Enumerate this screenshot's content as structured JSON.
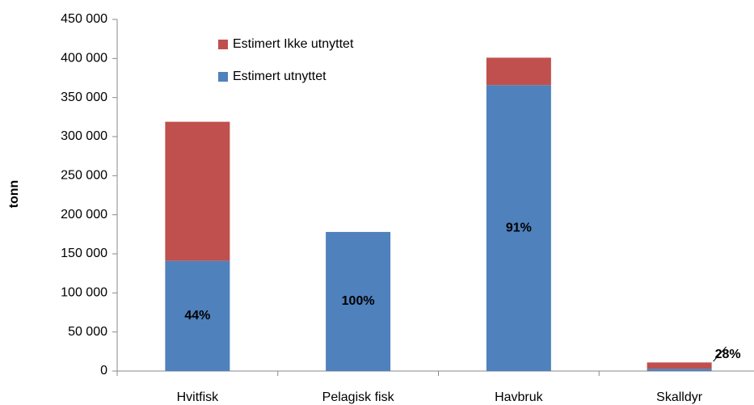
{
  "chart_data": {
    "type": "stacked_bar",
    "y_axis_label": "tonn",
    "categories": [
      "Hvitfisk",
      "Pelagisk fisk",
      "Havbruk",
      "Skalldyr"
    ],
    "series": [
      {
        "name": "Estimert utnyttet",
        "color": "#4f81bd",
        "values": [
          141000,
          178000,
          366000,
          3000
        ]
      },
      {
        "name": "Estimert Ikke utnyttet",
        "color": "#c0504d",
        "values": [
          178000,
          0,
          35000,
          8000
        ]
      }
    ],
    "annotations": [
      "44%",
      "100%",
      "91%",
      "28%"
    ],
    "ylim": [
      0,
      450000
    ],
    "yticks": [
      0,
      {
        "value": 50000,
        "label": "50 000"
      },
      {
        "value": 100000,
        "label": "100 000"
      },
      {
        "value": 150000,
        "label": "150 000"
      },
      {
        "value": 200000,
        "label": "200 000"
      },
      {
        "value": 250000,
        "label": "250 000"
      },
      {
        "value": 300000,
        "label": "300 000"
      },
      {
        "value": 350000,
        "label": "350 000"
      },
      {
        "value": 400000,
        "label": "400 000"
      },
      {
        "value": 450000,
        "label": "450 000"
      }
    ],
    "grid": false,
    "legend": "top-left"
  }
}
